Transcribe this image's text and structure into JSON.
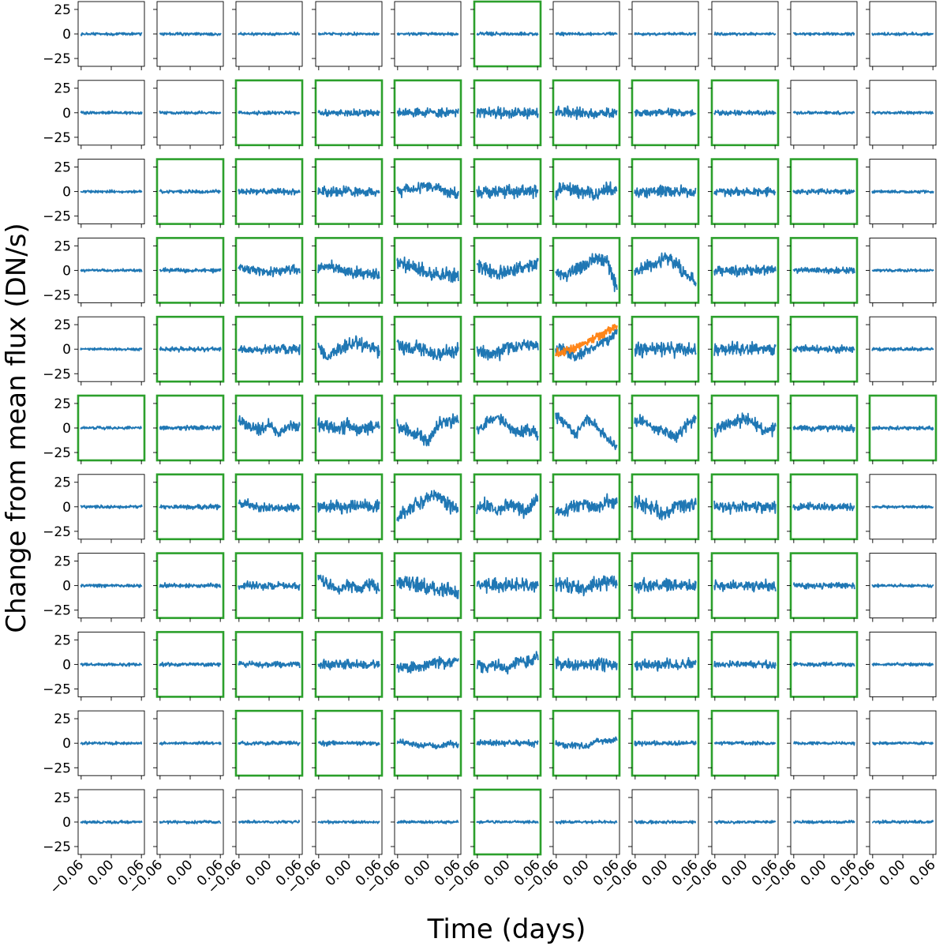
{
  "chart_data": {
    "type": "line",
    "layout": "small-multiples",
    "rows": 11,
    "cols": 11,
    "xlabel": "Time (days)",
    "ylabel": "Change from mean flux (DN/s)",
    "xlim": [
      -0.066,
      0.066
    ],
    "ylim": [
      -33,
      33
    ],
    "x_ticks": [
      -0.06,
      0.0,
      0.06
    ],
    "x_tick_labels": [
      "−0.06",
      "0.00",
      "0.06"
    ],
    "y_ticks": [
      25,
      0,
      -25
    ],
    "y_tick_labels": [
      "25",
      "0",
      "−25"
    ],
    "series_color": "#1f77b4",
    "model_color": "#ff7f0e",
    "highlight_color": "#2ca02c",
    "default_frame_color": "#000000",
    "highlighted_cells": [
      "0,5",
      "1,2",
      "1,3",
      "1,4",
      "1,5",
      "1,6",
      "1,7",
      "1,8",
      "2,1",
      "2,2",
      "2,3",
      "2,4",
      "2,5",
      "2,6",
      "2,7",
      "2,8",
      "2,9",
      "3,1",
      "3,2",
      "3,3",
      "3,4",
      "3,5",
      "3,6",
      "3,7",
      "3,8",
      "3,9",
      "4,1",
      "4,2",
      "4,3",
      "4,4",
      "4,5",
      "4,6",
      "4,7",
      "4,8",
      "4,9",
      "5,0",
      "5,1",
      "5,2",
      "5,3",
      "5,4",
      "5,5",
      "5,6",
      "5,7",
      "5,8",
      "5,9",
      "5,10",
      "6,1",
      "6,2",
      "6,3",
      "6,4",
      "6,5",
      "6,6",
      "6,7",
      "6,8",
      "6,9",
      "7,1",
      "7,2",
      "7,3",
      "7,4",
      "7,5",
      "7,6",
      "7,7",
      "7,8",
      "7,9",
      "8,1",
      "8,2",
      "8,3",
      "8,4",
      "8,5",
      "8,6",
      "8,7",
      "8,8",
      "8,9",
      "9,2",
      "9,3",
      "9,4",
      "9,5",
      "9,6",
      "9,7",
      "9,8",
      "10,5"
    ],
    "noise_amplitude": [
      [
        1.2,
        1.2,
        1.2,
        1.2,
        1.2,
        1.5,
        1.5,
        1.2,
        1.2,
        1.2,
        1.2
      ],
      [
        1.2,
        1.2,
        1.5,
        2.5,
        3.5,
        4.5,
        4.5,
        3,
        2,
        1.2,
        1.2
      ],
      [
        1.2,
        1.5,
        2.5,
        4,
        5,
        5.5,
        6,
        5,
        3.5,
        2,
        1.2
      ],
      [
        1.2,
        1.8,
        3.5,
        5,
        6,
        6,
        6,
        5.5,
        4,
        2.5,
        1.2
      ],
      [
        1.2,
        2,
        4,
        6,
        6,
        6,
        5,
        6,
        5.5,
        3,
        1.5
      ],
      [
        1.2,
        2,
        4.5,
        6,
        6,
        5,
        5,
        5.5,
        5,
        3,
        1.5
      ],
      [
        1.2,
        2,
        4,
        5.5,
        6,
        6,
        6,
        6,
        5,
        3,
        1.2
      ],
      [
        1.2,
        1.8,
        3.5,
        5,
        6,
        6,
        6,
        5.5,
        4.5,
        2.5,
        1.2
      ],
      [
        1.2,
        1.5,
        2.5,
        3.5,
        4.5,
        5,
        5,
        4.5,
        3,
        1.8,
        1.2
      ],
      [
        1.2,
        1.2,
        1.5,
        2,
        2.5,
        2.5,
        2.5,
        2,
        1.5,
        1.2,
        1.2
      ],
      [
        1.2,
        1.2,
        1.2,
        1.2,
        1.2,
        1.2,
        1.2,
        1.2,
        1.2,
        1.2,
        1.2
      ]
    ],
    "trend_shapes": {
      "2,4": [
        0,
        3,
        2,
        6,
        4,
        -1,
        -2
      ],
      "2,6": [
        0,
        4,
        2,
        -1,
        -2,
        3,
        1
      ],
      "3,2": [
        3,
        1,
        0,
        -2,
        0,
        1,
        0
      ],
      "3,3": [
        2,
        3,
        2,
        -2,
        -4,
        -3,
        -6
      ],
      "3,4": [
        8,
        4,
        2,
        -3,
        -5,
        -4,
        -6
      ],
      "3,5": [
        4,
        0,
        -4,
        -3,
        2,
        4,
        8
      ],
      "3,6": [
        0,
        -5,
        2,
        6,
        12,
        8,
        -18
      ],
      "3,7": [
        -2,
        3,
        6,
        14,
        7,
        -3,
        -10
      ],
      "4,3": [
        2,
        -8,
        0,
        4,
        6,
        2,
        0
      ],
      "4,4": [
        6,
        -2,
        2,
        -3,
        -6,
        -2,
        0
      ],
      "4,5": [
        -2,
        -5,
        -4,
        2,
        4,
        4,
        6
      ],
      "4,6": [
        2,
        -2,
        -8,
        0,
        4,
        8,
        18
      ],
      "5,2": [
        8,
        2,
        -2,
        4,
        -6,
        2,
        0
      ],
      "5,3": [
        4,
        2,
        -2,
        4,
        -2,
        0,
        2
      ],
      "5,4": [
        2,
        -2,
        -6,
        -14,
        4,
        6,
        8
      ],
      "5,5": [
        -4,
        6,
        12,
        2,
        -6,
        -2,
        -6
      ],
      "5,6": [
        12,
        5,
        -6,
        10,
        2,
        -10,
        -20
      ],
      "5,7": [
        8,
        6,
        0,
        -4,
        -10,
        2,
        10
      ],
      "5,8": [
        -4,
        2,
        6,
        10,
        4,
        -2,
        0
      ],
      "6,2": [
        4,
        2,
        -2,
        0,
        -2,
        0,
        -2
      ],
      "6,4": [
        -10,
        -4,
        2,
        8,
        12,
        2,
        -4
      ],
      "6,5": [
        -2,
        2,
        -4,
        2,
        0,
        -6,
        8
      ],
      "6,6": [
        -6,
        -4,
        2,
        4,
        -2,
        6,
        4
      ],
      "6,7": [
        4,
        2,
        -2,
        -10,
        2,
        0,
        4
      ],
      "7,3": [
        8,
        0,
        -4,
        2,
        -4,
        2,
        -4
      ],
      "7,4": [
        4,
        2,
        0,
        -2,
        -4,
        -4,
        -6
      ],
      "7,6": [
        0,
        2,
        -2,
        -4,
        2,
        4,
        2
      ],
      "8,4": [
        -2,
        -4,
        -2,
        0,
        2,
        2,
        4
      ],
      "8,5": [
        -2,
        -2,
        0,
        -6,
        4,
        2,
        8
      ],
      "9,4": [
        2,
        0,
        -2,
        -2,
        -4,
        0,
        -2
      ],
      "9,6": [
        0,
        -2,
        -2,
        -4,
        2,
        2,
        4
      ]
    },
    "model_overlay": {
      "panel": "4,6",
      "trend": [
        -4,
        -2,
        2,
        8,
        12,
        18,
        24
      ]
    }
  }
}
